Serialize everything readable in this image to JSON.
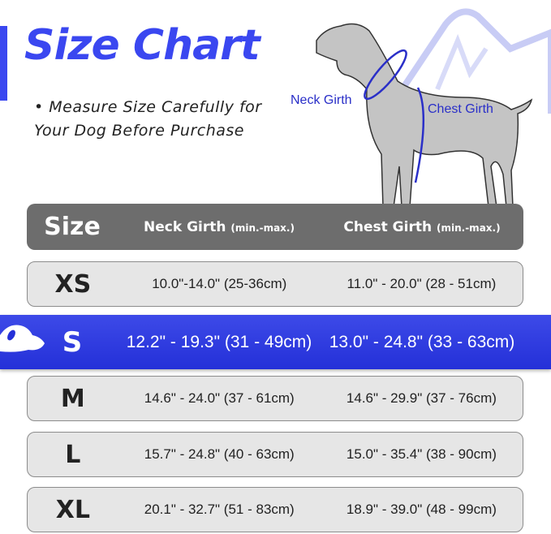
{
  "title": "Size Chart",
  "note": "• Measure Size Carefully for Your Dog Before Purchase",
  "diagram": {
    "neck_label": "Neck Girth",
    "chest_label": "Chest Girth"
  },
  "colors": {
    "accent": "#3a47f0",
    "header_bg": "#6d6d6d",
    "row_bg": "#e6e6e6",
    "highlight_bg": "#2f3be2"
  },
  "table": {
    "headers": {
      "size": "Size",
      "neck": "Neck Girth",
      "neck_unit": "(min.-max.)",
      "chest": "Chest Girth",
      "chest_unit": "(min.-max.)"
    },
    "rows": [
      {
        "size": "XS",
        "neck": "10.0\"-14.0\" (25-36cm)",
        "chest": "11.0\" - 20.0\" (28 - 51cm)",
        "highlighted": false
      },
      {
        "size": "S",
        "neck": "12.2\" - 19.3\" (31 - 49cm)",
        "chest": "13.0\" - 24.8\" (33 - 63cm)",
        "highlighted": true
      },
      {
        "size": "M",
        "neck": "14.6\" - 24.0\" (37 - 61cm)",
        "chest": "14.6\" - 29.9\" (37 - 76cm)",
        "highlighted": false
      },
      {
        "size": "L",
        "neck": "15.7\" - 24.8\" (40 - 63cm)",
        "chest": "15.0\" - 35.4\" (38 - 90cm)",
        "highlighted": false
      },
      {
        "size": "XL",
        "neck": "20.1\" - 32.7\" (51 - 83cm)",
        "chest": "18.9\" - 39.0\" (48 - 99cm)",
        "highlighted": false
      }
    ]
  }
}
